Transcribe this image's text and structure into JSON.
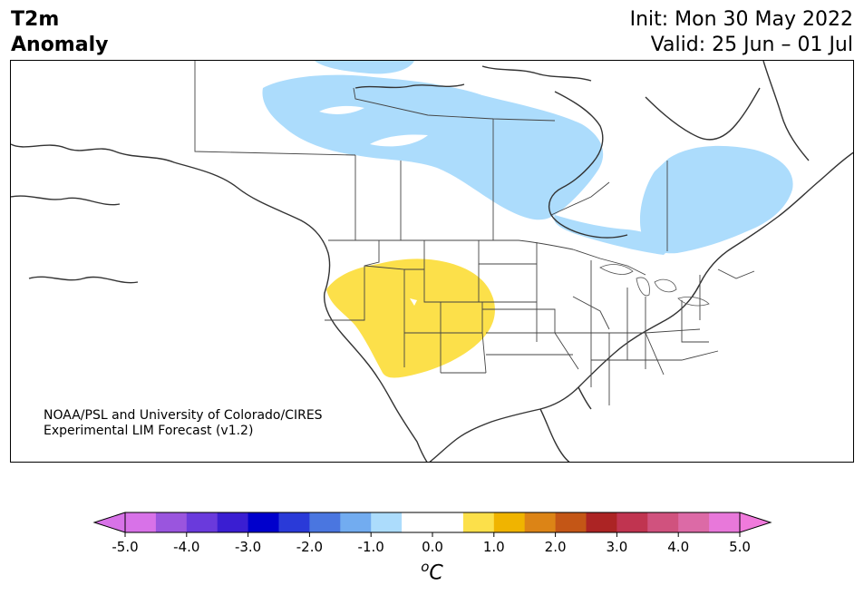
{
  "title": {
    "line1": "T2m",
    "line2": "Anomaly"
  },
  "init_text": "Init: Mon 30 May 2022",
  "valid_text": "Valid: 25 Jun – 01 Jul",
  "credit": {
    "line1": "NOAA/PSL and University of Colorado/CIRES",
    "line2": "Experimental LIM Forecast (v1.2)"
  },
  "colorbar": {
    "unit_superscript": "o",
    "unit_main": "C",
    "tick_labels": [
      "-5.0",
      "-4.0",
      "-3.0",
      "-2.0",
      "-1.0",
      "0.0",
      "1.0",
      "2.0",
      "3.0",
      "4.0",
      "5.0"
    ],
    "extend": "both",
    "colors": [
      "#d872e8",
      "#9a55de",
      "#6a3adc",
      "#3a1ed2",
      "#0000cc",
      "#2a3ad8",
      "#4a76e0",
      "#72acf0",
      "#acdcfc",
      "#ffffff",
      "#ffffff",
      "#fce04a",
      "#f0b400",
      "#dc8416",
      "#c45616",
      "#ac2424",
      "#c03450",
      "#d0527e",
      "#dc6aa6",
      "#e878da"
    ],
    "over_color": "#f07adc",
    "under_color": "#d872e8"
  },
  "map": {
    "anomaly_colors": {
      "cool": "#acdcfc",
      "warm": "#fce04a"
    },
    "regions": [
      {
        "name": "Canada north-central",
        "anomaly": "-1.0"
      },
      {
        "name": "Quebec / Labrador",
        "anomaly": "-1.0"
      },
      {
        "name": "Southwest US / Great Basin",
        "anomaly": "1.0"
      }
    ]
  }
}
